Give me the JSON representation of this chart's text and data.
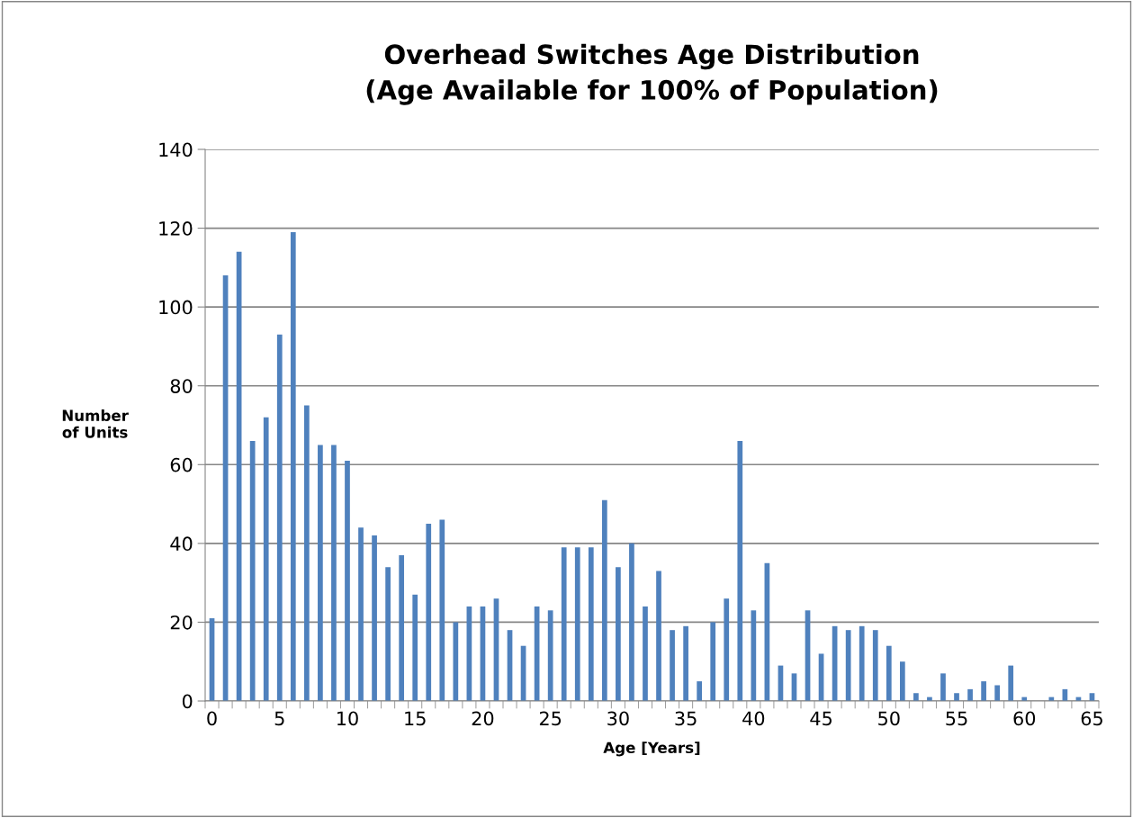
{
  "chart_data": {
    "type": "bar",
    "title": "Overhead Switches Age Distribution\n(Age Available for 100% of Population)",
    "xlabel": "Age [Years]",
    "ylabel": "Number\nof Units",
    "categories": [
      "0",
      null,
      null,
      null,
      null,
      "5",
      null,
      null,
      null,
      null,
      "10",
      null,
      null,
      null,
      null,
      "15",
      null,
      null,
      null,
      null,
      "20",
      null,
      null,
      null,
      null,
      "25",
      null,
      null,
      null,
      null,
      "30",
      null,
      null,
      null,
      null,
      "35",
      null,
      null,
      null,
      null,
      "40",
      null,
      null,
      null,
      null,
      "45",
      null,
      null,
      null,
      null,
      "50",
      null,
      null,
      null,
      null,
      "55",
      null,
      null,
      null,
      null,
      "60",
      null,
      null,
      null,
      null,
      "65"
    ],
    "values": [
      21,
      108,
      114,
      66,
      72,
      93,
      119,
      75,
      65,
      65,
      61,
      44,
      42,
      34,
      37,
      27,
      45,
      46,
      20,
      24,
      24,
      26,
      18,
      14,
      24,
      23,
      39,
      39,
      39,
      51,
      34,
      40,
      24,
      33,
      18,
      19,
      5,
      20,
      26,
      66,
      23,
      35,
      9,
      7,
      23,
      12,
      19,
      18,
      19,
      18,
      14,
      10,
      2,
      1,
      7,
      2,
      3,
      5,
      4,
      9,
      1,
      0,
      1,
      3,
      1,
      2
    ],
    "color": "#4f81bd",
    "ylim": [
      0,
      140
    ],
    "yticks": [
      0,
      20,
      40,
      60,
      80,
      100,
      120,
      140
    ],
    "grid": "y",
    "legend": false
  }
}
